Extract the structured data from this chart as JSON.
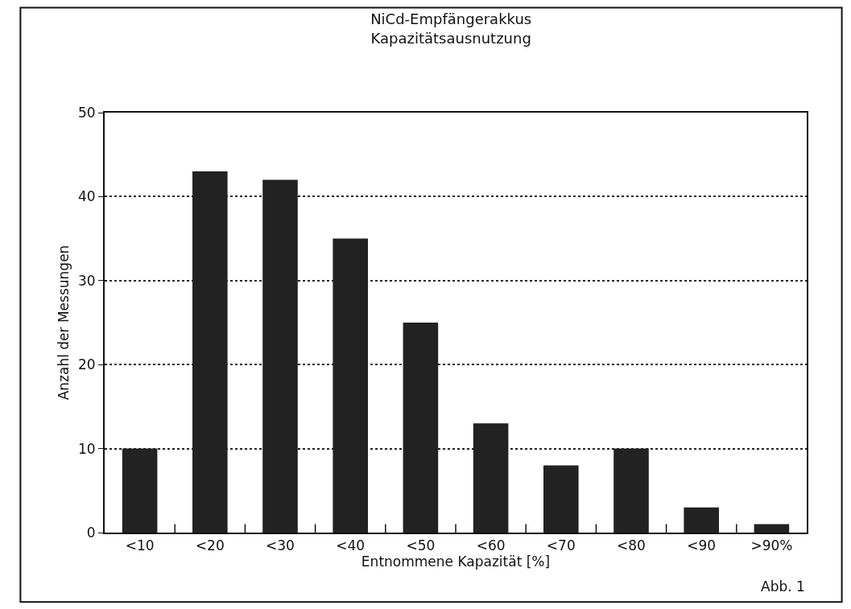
{
  "chart_data": {
    "type": "bar",
    "title": "NiCd-Empfängerakkus",
    "subtitle": "Kapazitätsausnutzung",
    "xlabel": "Entnommene Kapazität [%]",
    "ylabel": "Anzahl der Messungen",
    "categories": [
      "<10",
      "<20",
      "<30",
      "<40",
      "<50",
      "<60",
      "<70",
      "<80",
      "<90",
      ">90%"
    ],
    "values": [
      10,
      43,
      42,
      35,
      25,
      13,
      8,
      10,
      3,
      1
    ],
    "color": "#222222",
    "ylim": [
      0,
      50
    ],
    "yticks": [
      0,
      10,
      20,
      30,
      40,
      50
    ],
    "grid": "y",
    "annotations": [
      "Abb. 1"
    ]
  }
}
